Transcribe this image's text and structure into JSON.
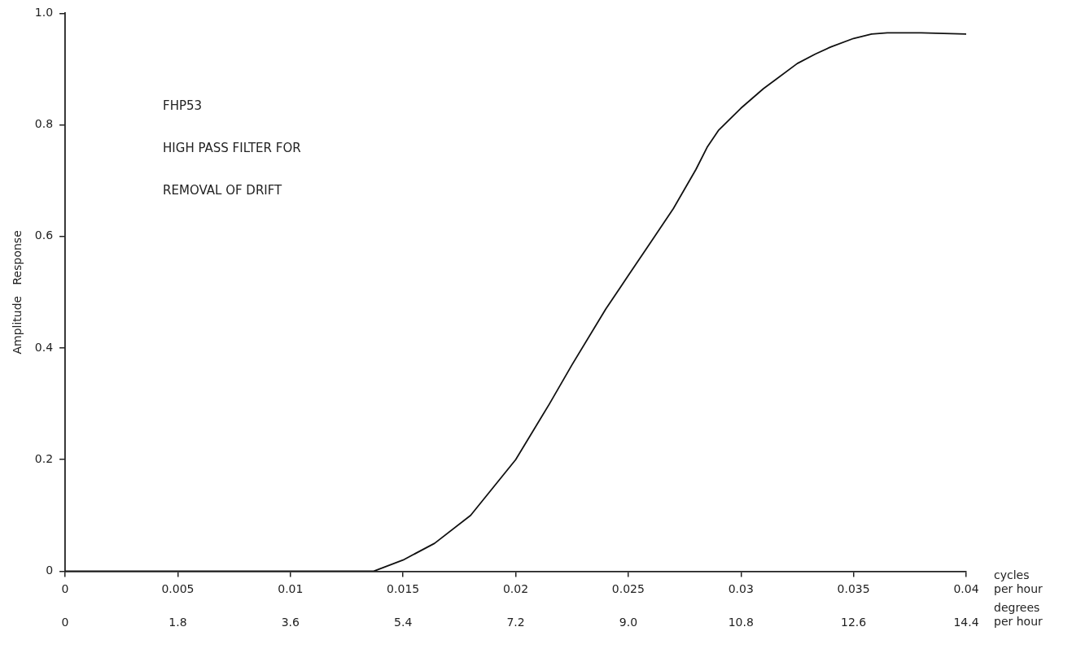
{
  "chart_data": {
    "type": "line",
    "xlabel": "cycles per hour",
    "x2label": "degrees per hour",
    "ylabel": "Amplitude   Response",
    "annotations": [
      "FHP53",
      "HIGH PASS FILTER FOR",
      "REMOVAL OF DRIFT"
    ],
    "xlim": [
      0,
      0.04
    ],
    "ylim": [
      0,
      1
    ],
    "xticks": [
      0,
      0.005,
      0.01,
      0.015,
      0.02,
      0.025,
      0.03,
      0.035,
      0.04
    ],
    "x2lim": [
      0,
      14.4
    ],
    "x2ticks": [
      0,
      1.8,
      3.6,
      5.4,
      7.2,
      {
        "value": 9,
        "label": "9.0"
      },
      10.8,
      12.6,
      14.4
    ],
    "yticks": [
      0,
      0.2,
      0.4,
      0.6,
      0.8,
      {
        "value": 1,
        "label": "1.0"
      }
    ],
    "grid": false,
    "legend": false,
    "marker": "none",
    "line_style": "solid",
    "series": [
      {
        "color": "#111111",
        "x": [
          0,
          0.005,
          0.01,
          0.0137,
          0.015,
          0.0164,
          0.018,
          0.019,
          0.02,
          0.0215,
          0.0225,
          0.024,
          0.025,
          0.026,
          0.027,
          0.028,
          0.0285,
          0.029,
          0.03,
          0.031,
          0.0315,
          0.0325,
          0.0333,
          0.034,
          0.035,
          0.0358,
          0.0365,
          0.038,
          0.04
        ],
        "values": [
          0,
          0,
          0,
          0,
          0.02,
          0.05,
          0.1,
          0.15,
          0.2,
          0.3,
          0.37,
          0.47,
          0.53,
          0.59,
          0.65,
          0.72,
          0.76,
          0.79,
          0.83,
          0.865,
          0.88,
          0.91,
          0.927,
          0.94,
          0.955,
          0.963,
          0.965,
          0.965,
          0.963
        ]
      }
    ]
  }
}
